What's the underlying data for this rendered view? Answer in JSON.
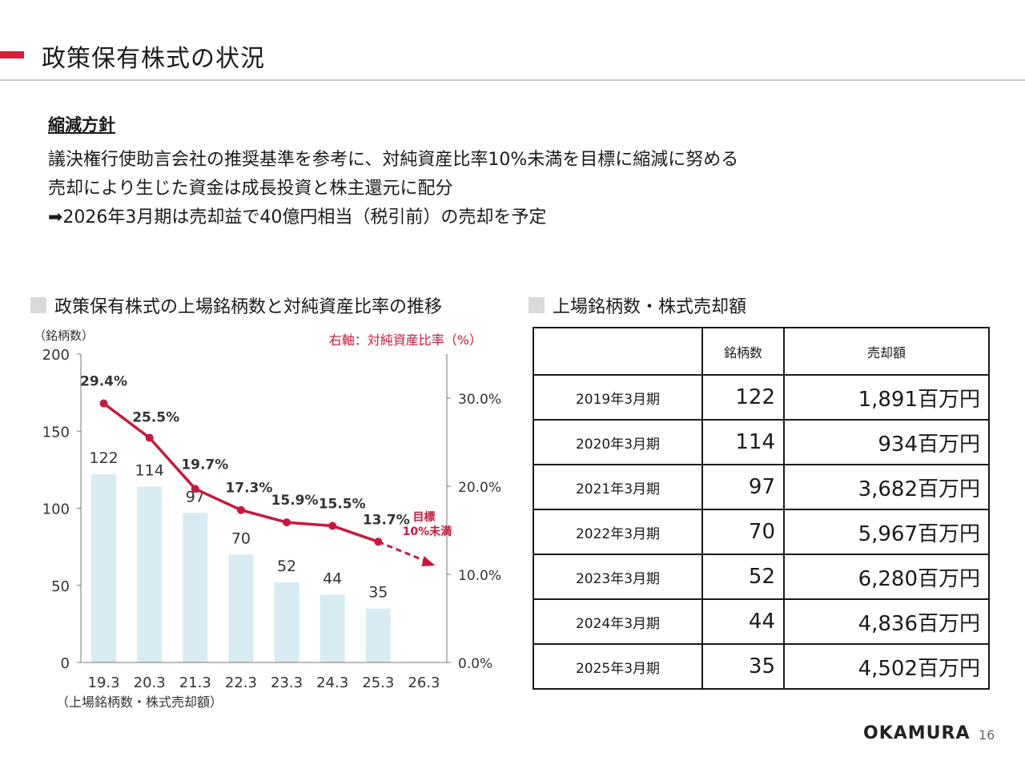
{
  "header": {
    "title": "政策保有株式の状況",
    "accent_color": "#d41f3a"
  },
  "policy": {
    "heading": "縮減方針",
    "lines": [
      "議決権行使助言会社の推奨基準を参考に、対純資産比率10%未満を目標に縮減に努める",
      "売却により生じた資金は成長投資と株主還元に配分",
      "➡2026年3月期は売却益で40億円相当（税引前）の売却を予定"
    ]
  },
  "chart_section_title": "政策保有株式の上場銘柄数と対純資産比率の推移",
  "table_section_title": "上場銘柄数・株式売却額",
  "chart_data": {
    "type": "bar",
    "categories": [
      "19.3",
      "20.3",
      "21.3",
      "22.3",
      "23.3",
      "24.3",
      "25.3",
      "26.3"
    ],
    "series": [
      {
        "type": "bar",
        "axis": "left",
        "values": [
          122,
          114,
          97,
          70,
          52,
          44,
          35,
          null
        ],
        "color": "#d6ecf2"
      },
      {
        "type": "line",
        "axis": "right",
        "values": [
          29.4,
          25.5,
          19.7,
          17.3,
          15.9,
          15.5,
          13.7,
          null
        ],
        "value_labels": [
          "29.4%",
          "25.5%",
          "19.7%",
          "17.3%",
          "15.9%",
          "15.5%",
          "13.7%"
        ],
        "color": "#c8183f"
      }
    ],
    "bar_labels": [
      "122",
      "114",
      "97",
      "70",
      "52",
      "44",
      "35"
    ],
    "target_arrow_end": 11,
    "left_axis": {
      "unit_label": "（銘柄数）",
      "ylim": [
        0,
        200
      ],
      "ticks": [
        "0",
        "50",
        "100",
        "150",
        "200"
      ],
      "tick_values": [
        0,
        50,
        100,
        150,
        200
      ]
    },
    "right_axis": {
      "label": "右軸：対純資産比率（%）",
      "ylim": [
        0,
        35
      ],
      "ticks": [
        "0.0%",
        "10.0%",
        "20.0%",
        "30.0%"
      ],
      "tick_values": [
        0,
        10,
        20,
        30
      ]
    },
    "target_label": [
      "目標",
      "10%未満"
    ],
    "footnote": "（上場銘柄数・株式売却額）",
    "grid": false
  },
  "table": {
    "headers": [
      "",
      "銘柄数",
      "売却額"
    ],
    "rows": [
      {
        "year": "2019年3月期",
        "count": "122",
        "amount": "1,891百万円"
      },
      {
        "year": "2020年3月期",
        "count": "114",
        "amount": "934百万円"
      },
      {
        "year": "2021年3月期",
        "count": "97",
        "amount": "3,682百万円"
      },
      {
        "year": "2022年3月期",
        "count": "70",
        "amount": "5,967百万円"
      },
      {
        "year": "2023年3月期",
        "count": "52",
        "amount": "6,280百万円"
      },
      {
        "year": "2024年3月期",
        "count": "44",
        "amount": "4,836百万円"
      },
      {
        "year": "2025年3月期",
        "count": "35",
        "amount": "4,502百万円"
      }
    ]
  },
  "footer": {
    "logo": "OKAMURA",
    "page": "16"
  }
}
